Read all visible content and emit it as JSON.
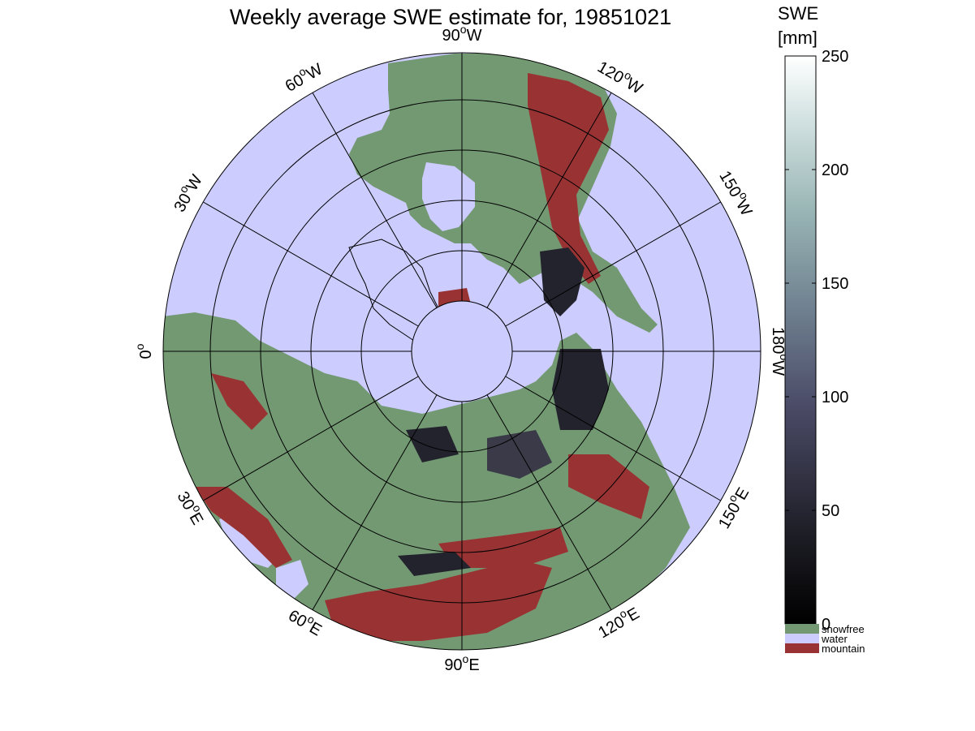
{
  "title": "Weekly average SWE estimate for, 19851021",
  "map": {
    "longitude_labels": [
      {
        "id": "90W",
        "value": "90",
        "unit": "W"
      },
      {
        "id": "120W",
        "value": "120",
        "unit": "W"
      },
      {
        "id": "150W",
        "value": "150",
        "unit": "W"
      },
      {
        "id": "180W",
        "value": "180",
        "unit": "W"
      },
      {
        "id": "150E",
        "value": "150",
        "unit": "E"
      },
      {
        "id": "120E",
        "value": "120",
        "unit": "E"
      },
      {
        "id": "90E",
        "value": "90",
        "unit": "E"
      },
      {
        "id": "60E",
        "value": "60",
        "unit": "E"
      },
      {
        "id": "30E",
        "value": "30",
        "unit": "E"
      },
      {
        "id": "0",
        "value": "0",
        "unit": ""
      },
      {
        "id": "30W",
        "value": "30",
        "unit": "W"
      },
      {
        "id": "60W",
        "value": "60",
        "unit": "W"
      }
    ],
    "degree_symbol": "o",
    "colors": {
      "water": "#ccccff",
      "snowfree": "#739973",
      "mountain": "#993333",
      "snow_low": "#23232e",
      "snow_mid": "#3a3a48"
    }
  },
  "colorbar": {
    "title_line1": "SWE",
    "title_line2": "[mm]",
    "ticks": [
      "250",
      "200",
      "150",
      "100",
      "50",
      "0"
    ],
    "range": [
      0,
      250
    ],
    "categories": [
      {
        "label": "snowfree",
        "color": "#739973"
      },
      {
        "label": "water",
        "color": "#ccccff"
      },
      {
        "label": "mountain",
        "color": "#993333"
      }
    ]
  }
}
